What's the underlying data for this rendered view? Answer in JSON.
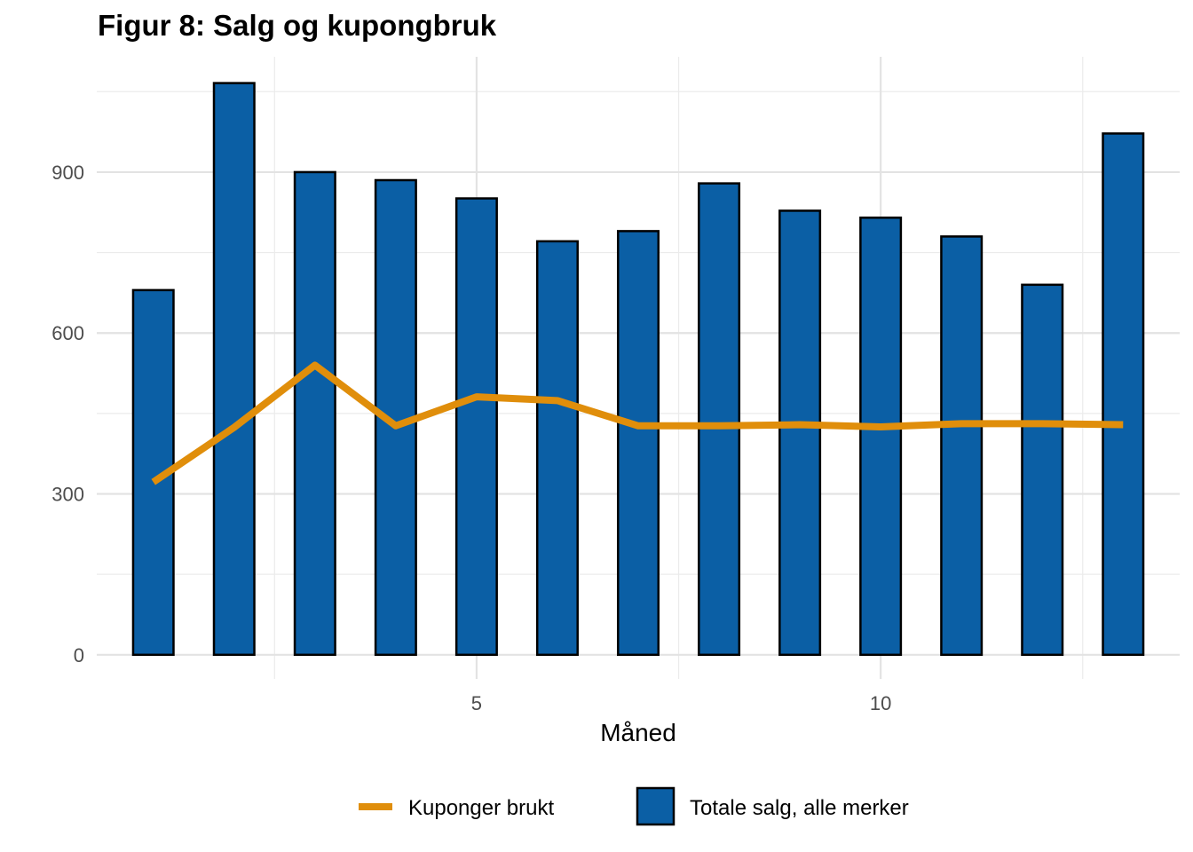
{
  "chart_data": {
    "type": "bar",
    "title": "Figur 8: Salg og kupongbruk",
    "xlabel": "Måned",
    "ylabel": "",
    "x": [
      1,
      2,
      3,
      4,
      5,
      6,
      7,
      8,
      9,
      10,
      11,
      12,
      13
    ],
    "xlim": [
      0.3,
      13.7
    ],
    "ylim": [
      -45,
      1115
    ],
    "x_ticks": [
      5,
      10
    ],
    "y_ticks": [
      0,
      300,
      600,
      900
    ],
    "grid": true,
    "legend_position": "bottom",
    "series": [
      {
        "name": "Totale salg, alle merker",
        "type": "bar",
        "color": "#0b5fa5",
        "values": [
          680,
          1066,
          900,
          885,
          851,
          771,
          790,
          879,
          828,
          815,
          780,
          690,
          972
        ]
      },
      {
        "name": "Kuponger brukt",
        "type": "line",
        "color": "#e08e0b",
        "values": [
          322,
          424,
          540,
          427,
          481,
          474,
          427,
          427,
          429,
          425,
          431,
          431,
          429
        ]
      }
    ]
  }
}
